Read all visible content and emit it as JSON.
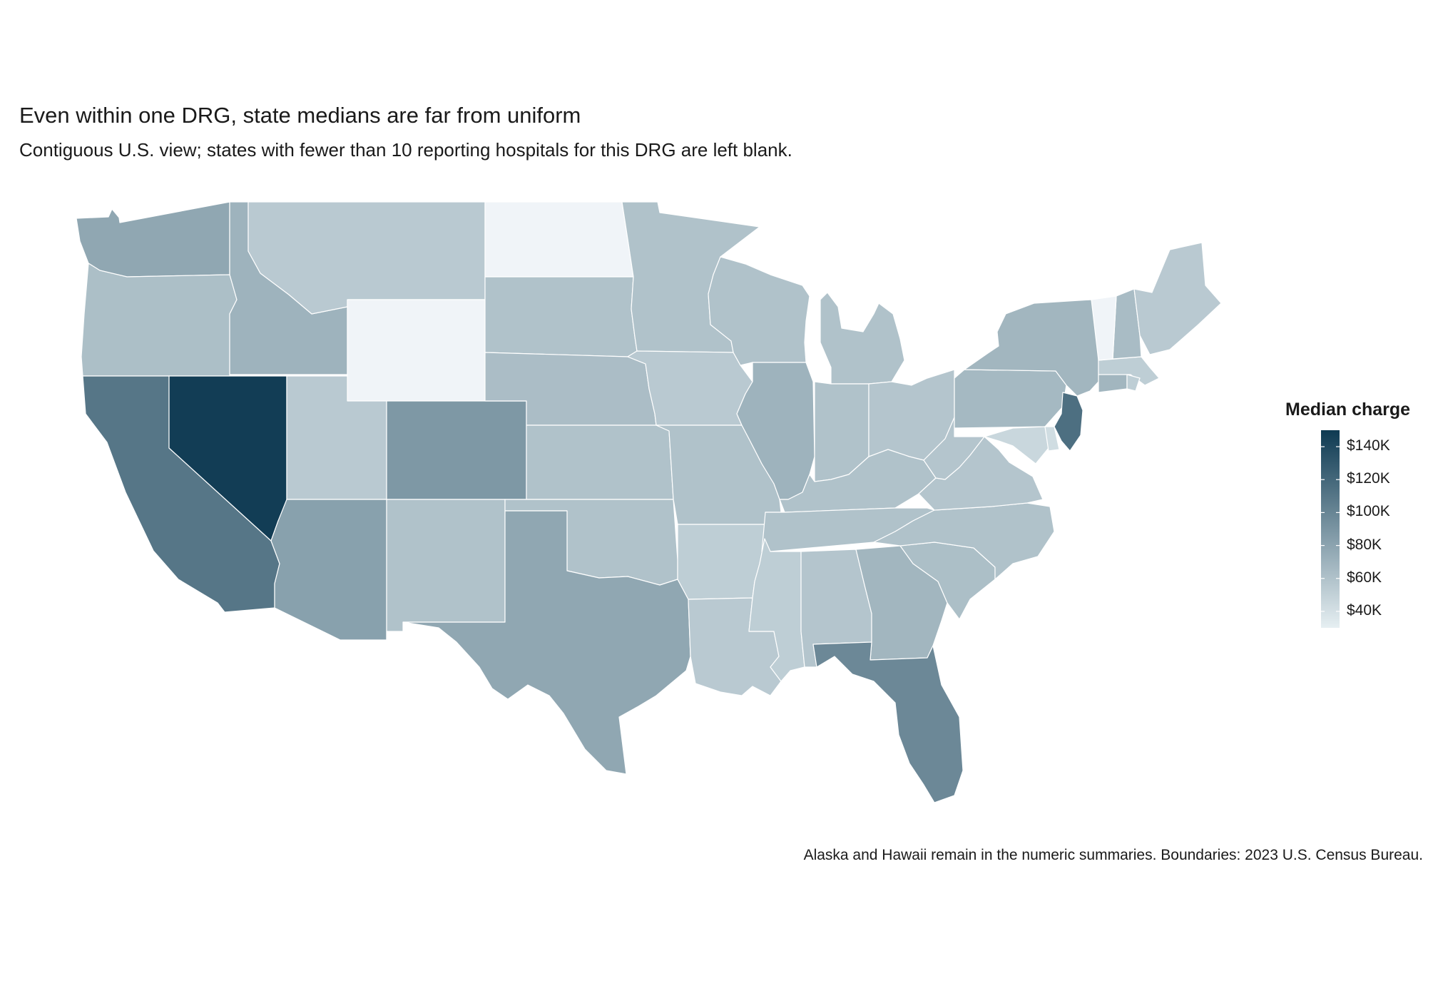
{
  "title": "Even within one DRG, state medians are far from uniform",
  "subtitle": "Contiguous U.S. view; states with fewer than 10 reporting hospitals for this DRG are left blank.",
  "caption": "Alaska and Hawaii remain in the numeric summaries. Boundaries: 2023 U.S. Census Bureau.",
  "legend": {
    "title": "Median charge",
    "ticks": [
      {
        "value": 140000,
        "label": "$140K"
      },
      {
        "value": 120000,
        "label": "$120K"
      },
      {
        "value": 100000,
        "label": "$100K"
      },
      {
        "value": 80000,
        "label": "$80K"
      },
      {
        "value": 60000,
        "label": "$60K"
      },
      {
        "value": 40000,
        "label": "$40K"
      }
    ],
    "min": 30000,
    "max": 150000,
    "color_low": "#e6eff2",
    "color_high": "#0e3a52"
  },
  "colors": {
    "blank_state": "#f0f4f8",
    "border": "#ffffff"
  },
  "chart_data": {
    "type": "choropleth",
    "region": "Contiguous United States",
    "variable": "Median charge",
    "units": "USD",
    "states": [
      {
        "state": "WA",
        "value": 78000
      },
      {
        "state": "OR",
        "value": 62000
      },
      {
        "state": "CA",
        "value": 110000
      },
      {
        "state": "NV",
        "value": 148000
      },
      {
        "state": "ID",
        "value": 70000
      },
      {
        "state": "MT",
        "value": 55000
      },
      {
        "state": "WY",
        "value": null
      },
      {
        "state": "UT",
        "value": 55000
      },
      {
        "state": "AZ",
        "value": 82000
      },
      {
        "state": "CO",
        "value": 88000
      },
      {
        "state": "NM",
        "value": 60000
      },
      {
        "state": "ND",
        "value": null
      },
      {
        "state": "SD",
        "value": 60000
      },
      {
        "state": "NE",
        "value": 63000
      },
      {
        "state": "KS",
        "value": 60000
      },
      {
        "state": "OK",
        "value": 60000
      },
      {
        "state": "TX",
        "value": 78000
      },
      {
        "state": "MN",
        "value": 60000
      },
      {
        "state": "IA",
        "value": 55000
      },
      {
        "state": "MO",
        "value": 60000
      },
      {
        "state": "AR",
        "value": 52000
      },
      {
        "state": "LA",
        "value": 55000
      },
      {
        "state": "WI",
        "value": 60000
      },
      {
        "state": "IL",
        "value": 70000
      },
      {
        "state": "MI",
        "value": 60000
      },
      {
        "state": "IN",
        "value": 60000
      },
      {
        "state": "OH",
        "value": 58000
      },
      {
        "state": "KY",
        "value": 60000
      },
      {
        "state": "TN",
        "value": 60000
      },
      {
        "state": "MS",
        "value": 52000
      },
      {
        "state": "AL",
        "value": 58000
      },
      {
        "state": "GA",
        "value": 68000
      },
      {
        "state": "FL",
        "value": 98000
      },
      {
        "state": "SC",
        "value": 62000
      },
      {
        "state": "NC",
        "value": 60000
      },
      {
        "state": "VA",
        "value": 58000
      },
      {
        "state": "WV",
        "value": 58000
      },
      {
        "state": "PA",
        "value": 66000
      },
      {
        "state": "NY",
        "value": 68000
      },
      {
        "state": "NJ",
        "value": 115000
      },
      {
        "state": "MD",
        "value": 46000
      },
      {
        "state": "DE",
        "value": 42000
      },
      {
        "state": "CT",
        "value": 68000
      },
      {
        "state": "MA",
        "value": 52000
      },
      {
        "state": "RI",
        "value": 52000
      },
      {
        "state": "NH",
        "value": 64000
      },
      {
        "state": "VT",
        "value": null
      },
      {
        "state": "ME",
        "value": 55000
      }
    ]
  }
}
